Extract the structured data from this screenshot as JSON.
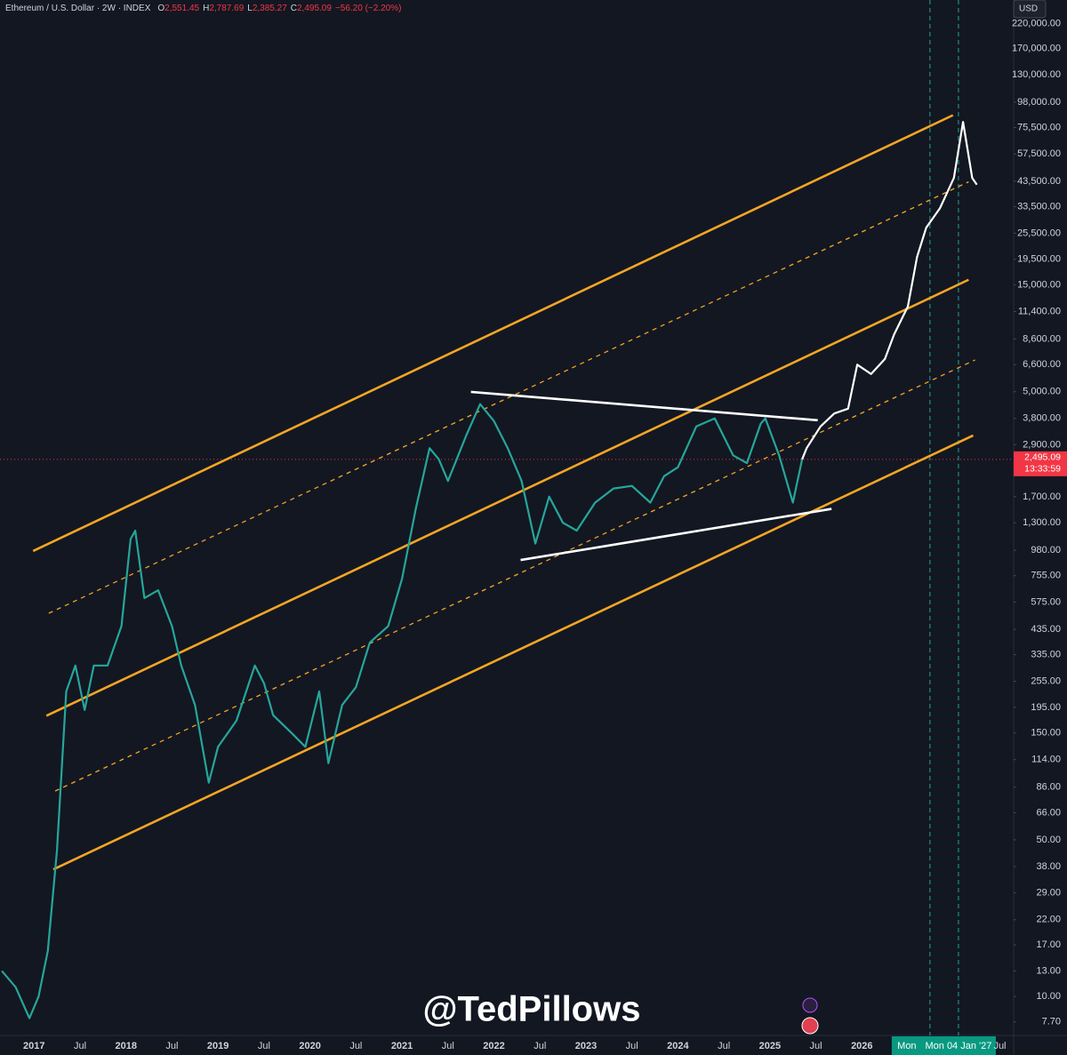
{
  "chart_data": {
    "type": "line",
    "header": {
      "symbol": "Ethereum / U.S. Dollar · 2W · INDEX",
      "ohlc": [
        {
          "label": "O",
          "value": "2,551.45"
        },
        {
          "label": "H",
          "value": "2,787.69"
        },
        {
          "label": "L",
          "value": "2,385.27"
        },
        {
          "label": "C",
          "value": "2,495.09"
        }
      ],
      "change": "−56.20 (−2.20%)"
    },
    "currency": "USD",
    "watermark": "@TedPillows",
    "log_scale": true,
    "xlim": [
      2016.63,
      2027.65
    ],
    "xticks": [
      2017,
      {
        "value": 2017.5,
        "label": "Jul"
      },
      2018,
      {
        "value": 2018.5,
        "label": "Jul"
      },
      2019,
      {
        "value": 2019.5,
        "label": "Jul"
      },
      2020,
      {
        "value": 2020.5,
        "label": "Jul"
      },
      2021,
      {
        "value": 2021.5,
        "label": "Jul"
      },
      2022,
      {
        "value": 2022.5,
        "label": "Jul"
      },
      2023,
      {
        "value": 2023.5,
        "label": "Jul"
      },
      2024,
      {
        "value": 2024.5,
        "label": "Jul"
      },
      2025,
      {
        "value": 2025.5,
        "label": "Jul"
      },
      2026,
      {
        "value": 2027.5,
        "label": "Jul"
      }
    ],
    "ylim": [
      6.7,
      280000
    ],
    "yticks": [
      {
        "value": 220000,
        "label": "220,000.00"
      },
      {
        "value": 170000,
        "label": "170,000.00"
      },
      {
        "value": 130000,
        "label": "130,000.00"
      },
      {
        "value": 98000,
        "label": "98,000.00"
      },
      {
        "value": 75500,
        "label": "75,500.00"
      },
      {
        "value": 57500,
        "label": "57,500.00"
      },
      {
        "value": 43500,
        "label": "43,500.00"
      },
      {
        "value": 33500,
        "label": "33,500.00"
      },
      {
        "value": 25500,
        "label": "25,500.00"
      },
      {
        "value": 19500,
        "label": "19,500.00"
      },
      {
        "value": 15000,
        "label": "15,000.00"
      },
      {
        "value": 11400,
        "label": "11,400.00"
      },
      {
        "value": 8600,
        "label": "8,600.00"
      },
      {
        "value": 6600,
        "label": "6,600.00"
      },
      {
        "value": 5000,
        "label": "5,000.00"
      },
      {
        "value": 3800,
        "label": "3,800.00"
      },
      {
        "value": 2900,
        "label": "2,900.00"
      },
      {
        "value": 1700,
        "label": "1,700.00"
      },
      {
        "value": 1300,
        "label": "1,300.00"
      },
      {
        "value": 980,
        "label": "980.00"
      },
      {
        "value": 755,
        "label": "755.00"
      },
      {
        "value": 575,
        "label": "575.00"
      },
      {
        "value": 435,
        "label": "435.00"
      },
      {
        "value": 335,
        "label": "335.00"
      },
      {
        "value": 255,
        "label": "255.00"
      },
      {
        "value": 195,
        "label": "195.00"
      },
      {
        "value": 150,
        "label": "150.00"
      },
      {
        "value": 114,
        "label": "114.00"
      },
      {
        "value": 86,
        "label": "86.00"
      },
      {
        "value": 66,
        "label": "66.00"
      },
      {
        "value": 50,
        "label": "50.00"
      },
      {
        "value": 38,
        "label": "38.00"
      },
      {
        "value": 29,
        "label": "29.00"
      },
      {
        "value": 22,
        "label": "22.00"
      },
      {
        "value": 17,
        "label": "17.00"
      },
      {
        "value": 13,
        "label": "13.00"
      },
      {
        "value": 10,
        "label": "10.00"
      },
      {
        "value": 7.7,
        "label": "7.70"
      }
    ],
    "series": [
      {
        "color": "#26a69a",
        "x": [
          2016.65,
          2016.8,
          2016.95,
          2017.05,
          2017.15,
          2017.25,
          2017.35,
          2017.45,
          2017.55,
          2017.65,
          2017.8,
          2017.95,
          2018.05,
          2018.1,
          2018.2,
          2018.35,
          2018.5,
          2018.6,
          2018.75,
          2018.9,
          2019.0,
          2019.2,
          2019.4,
          2019.5,
          2019.6,
          2019.8,
          2019.95,
          2020.1,
          2020.2,
          2020.35,
          2020.5,
          2020.65,
          2020.85,
          2021.0,
          2021.15,
          2021.3,
          2021.4,
          2021.5,
          2021.7,
          2021.85,
          2022.0,
          2022.15,
          2022.3,
          2022.45,
          2022.6,
          2022.75,
          2022.9,
          2023.1,
          2023.3,
          2023.5,
          2023.7,
          2023.85,
          2024.0,
          2024.2,
          2024.4,
          2024.6,
          2024.75,
          2024.9,
          2024.95,
          2025.1,
          2025.25,
          2025.35
        ],
        "values": [
          13,
          11,
          8,
          10,
          16,
          45,
          230,
          300,
          190,
          300,
          300,
          450,
          1100,
          1200,
          600,
          650,
          450,
          300,
          200,
          90,
          130,
          170,
          300,
          250,
          180,
          150,
          130,
          230,
          110,
          200,
          240,
          380,
          450,
          730,
          1500,
          2800,
          2500,
          2000,
          3200,
          4400,
          3700,
          2800,
          2000,
          1050,
          1700,
          1300,
          1200,
          1600,
          1850,
          1900,
          1600,
          2100,
          2300,
          3500,
          3800,
          2600,
          2400,
          3600,
          3800,
          2600,
          1600,
          2495.09
        ]
      },
      {
        "color": "#ffffff",
        "x": [
          2025.35,
          2025.4,
          2025.55,
          2025.7,
          2025.85,
          2025.95,
          2026.1,
          2026.25,
          2026.35,
          2026.5,
          2026.6,
          2026.7,
          2026.85,
          2027.0,
          2027.1,
          2027.2,
          2027.25
        ],
        "values": [
          2495.09,
          2800,
          3500,
          4000,
          4200,
          6600,
          6000,
          7000,
          9000,
          12000,
          20000,
          27000,
          33000,
          45000,
          80000,
          45000,
          42000
        ]
      }
    ],
    "trend_lines": [
      {
        "color": "#f5a623",
        "dashed": false,
        "x": [
          2016.99,
          2026.99
        ],
        "values": [
          973,
          85700
        ]
      },
      {
        "color": "#f5a623",
        "dashed": false,
        "x": [
          2017.135,
          2027.16
        ],
        "values": [
          179,
          15800
        ]
      },
      {
        "color": "#f5a623",
        "dashed": false,
        "x": [
          2017.21,
          2027.21
        ],
        "values": [
          36.9,
          3190
        ]
      },
      {
        "color": "#f5a623",
        "dashed": true,
        "x": [
          2017.16,
          2027.16
        ],
        "values": [
          513,
          43200
        ]
      },
      {
        "color": "#f5a623",
        "dashed": true,
        "x": [
          2017.23,
          2027.23
        ],
        "values": [
          82.6,
          6930
        ]
      },
      {
        "color": "#ffffff",
        "dashed": false,
        "x": [
          2021.75,
          2025.52
        ],
        "values": [
          4990,
          3730
        ]
      },
      {
        "color": "#ffffff",
        "dashed": false,
        "x": [
          2022.29,
          2025.67
        ],
        "values": [
          887,
          1500
        ]
      }
    ],
    "vertical_markers": [
      {
        "x": 2026.74,
        "label": "Mon"
      },
      {
        "x": 2027.05,
        "label": "Mon 04 Jan '27"
      }
    ],
    "last_price": {
      "value": 2495.09,
      "value_label": "2,495.09",
      "countdown": "13:33:59"
    }
  }
}
